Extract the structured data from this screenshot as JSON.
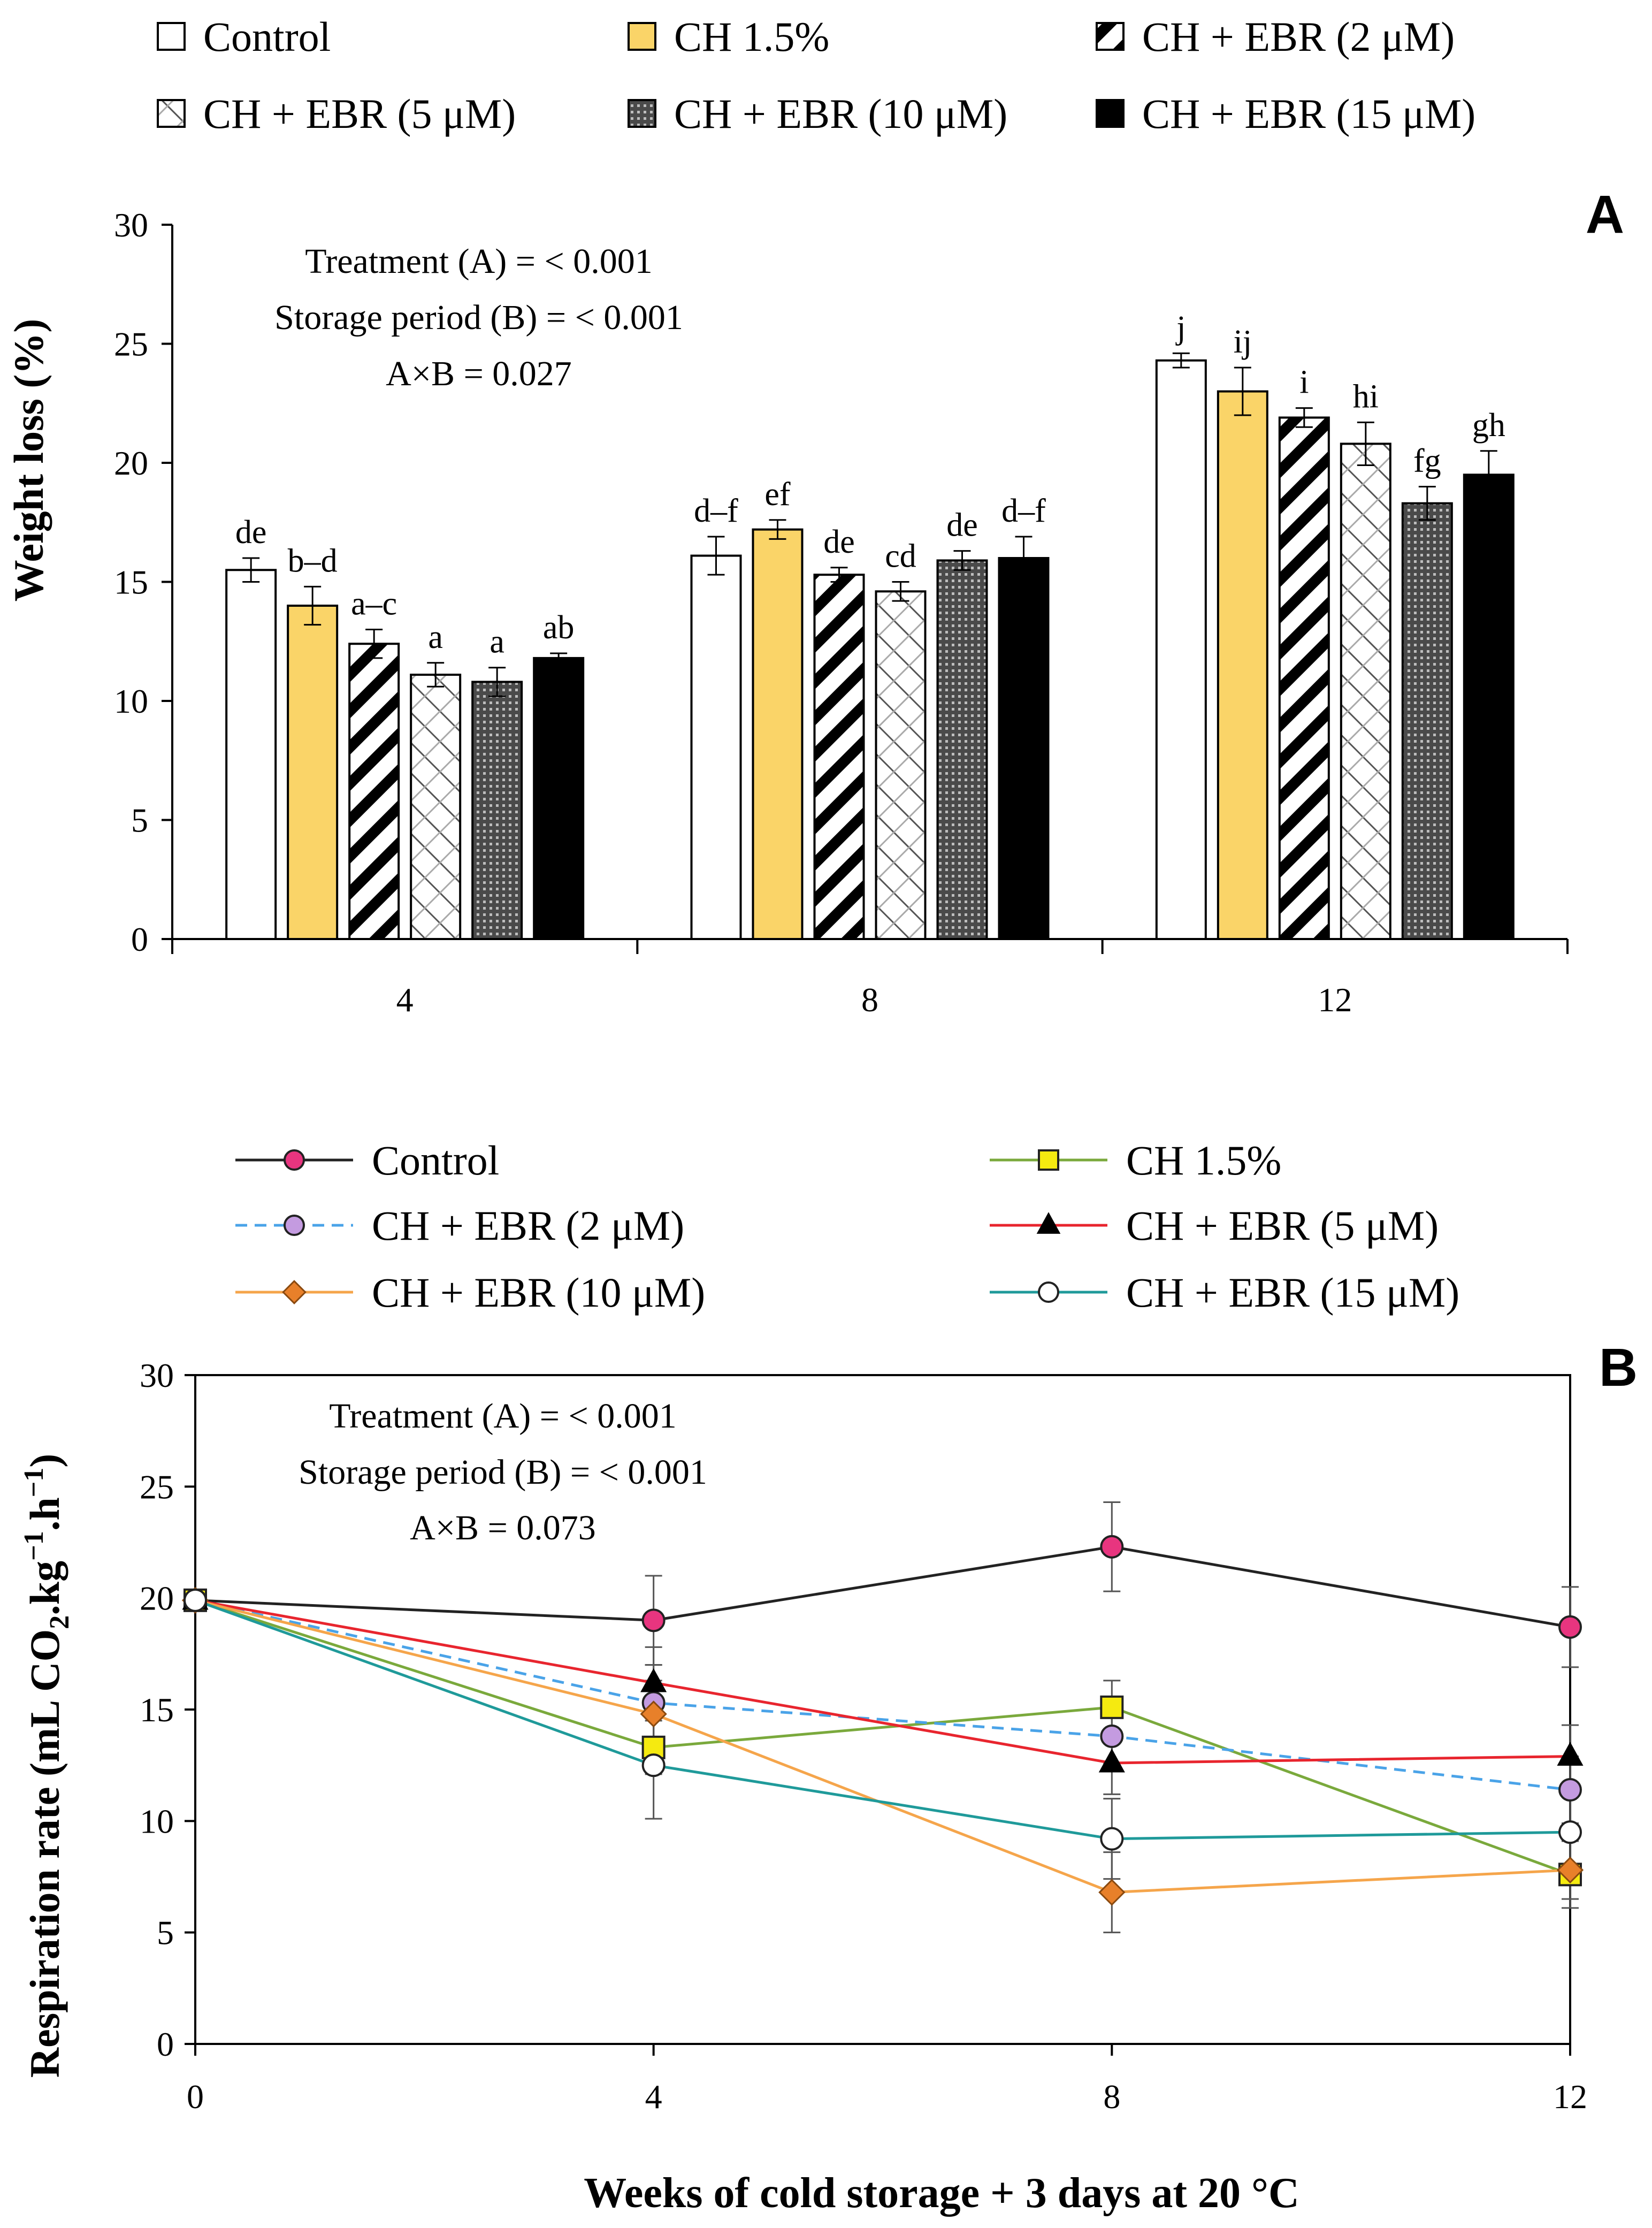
{
  "chart_data": [
    {
      "type": "bar",
      "panel_label": "A",
      "title": "",
      "xlabel": "",
      "ylabel": "Weight loss (%)",
      "ylim": [
        0,
        30
      ],
      "yticks": [
        0,
        5,
        10,
        15,
        20,
        25,
        30
      ],
      "categories": [
        "4",
        "8",
        "12"
      ],
      "series": [
        {
          "name": "Control",
          "values": [
            15.5,
            16.1,
            24.3
          ],
          "errors": [
            0.5,
            0.8,
            0.3
          ],
          "letters": [
            "de",
            "d–f",
            "j"
          ],
          "fill": "#ffffff",
          "pattern": "none"
        },
        {
          "name": "CH 1.5%",
          "values": [
            14.0,
            17.2,
            23.0
          ],
          "errors": [
            0.8,
            0.4,
            1.0
          ],
          "letters": [
            "b–d",
            "ef",
            "ij"
          ],
          "fill": "#FAD468",
          "pattern": "none"
        },
        {
          "name": "CH + EBR (2 μM)",
          "values": [
            12.4,
            15.3,
            21.9
          ],
          "errors": [
            0.6,
            0.3,
            0.4
          ],
          "letters": [
            "a–c",
            "de",
            "i"
          ],
          "fill": "#ffffff",
          "pattern": "diag-thick"
        },
        {
          "name": "CH + EBR (5 μM)",
          "values": [
            11.1,
            14.6,
            20.8
          ],
          "errors": [
            0.5,
            0.4,
            0.9
          ],
          "letters": [
            "a",
            "cd",
            "hi"
          ],
          "fill": "#ffffff",
          "pattern": "diag-thin"
        },
        {
          "name": "CH + EBR (10 μM)",
          "values": [
            10.8,
            15.9,
            18.3
          ],
          "errors": [
            0.6,
            0.4,
            0.7
          ],
          "letters": [
            "a",
            "de",
            "fg"
          ],
          "fill": "#555555",
          "pattern": "dots"
        },
        {
          "name": "CH + EBR (15 μM)",
          "values": [
            11.8,
            16.0,
            19.5
          ],
          "errors": [
            0.2,
            0.9,
            1.0
          ],
          "letters": [
            "ab",
            "d–f",
            "gh"
          ],
          "fill": "#000000",
          "pattern": "none"
        }
      ],
      "annotations": [
        "Treatment (A) = < 0.001",
        "Storage period (B) = < 0.001",
        "A×B = 0.027"
      ]
    },
    {
      "type": "line",
      "panel_label": "B",
      "title": "",
      "xlabel": "Weeks of cold storage + 3 days at 20 °C",
      "ylabel_main": "Respiration rate (mL CO",
      "ylabel_sub2": "2",
      "ylabel_mid": ".kg",
      "ylabel_sup1": "−1",
      "ylabel_mid2": ".h",
      "ylabel_sup2": "−1",
      "ylabel_end": ")",
      "x": [
        0,
        4,
        8,
        12
      ],
      "xlim": [
        0,
        12
      ],
      "xticks": [
        0,
        4,
        8,
        12
      ],
      "ylim": [
        0,
        30
      ],
      "yticks": [
        0,
        5,
        10,
        15,
        20,
        25,
        30
      ],
      "series": [
        {
          "name": "Control",
          "values": [
            19.9,
            19.0,
            22.3,
            18.7
          ],
          "errors": [
            0.3,
            2.0,
            2.0,
            1.8
          ],
          "line_color": "#222222",
          "dash": "solid",
          "marker": "circle",
          "marker_fill": "#E8357F"
        },
        {
          "name": "CH 1.5%",
          "values": [
            19.9,
            13.3,
            15.1,
            7.6
          ],
          "errors": [
            0.3,
            1.2,
            1.2,
            1.5
          ],
          "line_color": "#7AA93C",
          "dash": "solid",
          "marker": "square",
          "marker_fill": "#F5EA10"
        },
        {
          "name": "CH + EBR (2 μM)",
          "values": [
            19.9,
            15.3,
            13.8,
            11.4
          ],
          "errors": [
            0.3,
            1.7,
            1.2,
            1.5
          ],
          "line_color": "#4AA3E8",
          "dash": "dashed",
          "marker": "circle",
          "marker_fill": "#C49BE0"
        },
        {
          "name": "CH + EBR (5 μM)",
          "values": [
            19.9,
            16.2,
            12.6,
            12.9
          ],
          "errors": [
            0.3,
            1.6,
            1.4,
            1.4
          ],
          "line_color": "#E8252E",
          "dash": "solid",
          "marker": "triangle",
          "marker_fill": "#000000"
        },
        {
          "name": "CH + EBR (10 μM)",
          "values": [
            19.9,
            14.8,
            6.8,
            7.8
          ],
          "errors": [
            0.3,
            1.5,
            1.8,
            1.3
          ],
          "line_color": "#F5A54B",
          "dash": "solid",
          "marker": "diamond",
          "marker_fill": "#E8802A"
        },
        {
          "name": "CH + EBR (15 μM)",
          "values": [
            19.9,
            12.5,
            9.2,
            9.5
          ],
          "errors": [
            0.3,
            2.4,
            1.8,
            1.6
          ],
          "line_color": "#1F9A9A",
          "dash": "solid",
          "marker": "circle",
          "marker_fill": "#ffffff"
        }
      ],
      "annotations": [
        "Treatment (A) = < 0.001",
        "Storage period (B) = < 0.001",
        "A×B = 0.073"
      ]
    }
  ]
}
